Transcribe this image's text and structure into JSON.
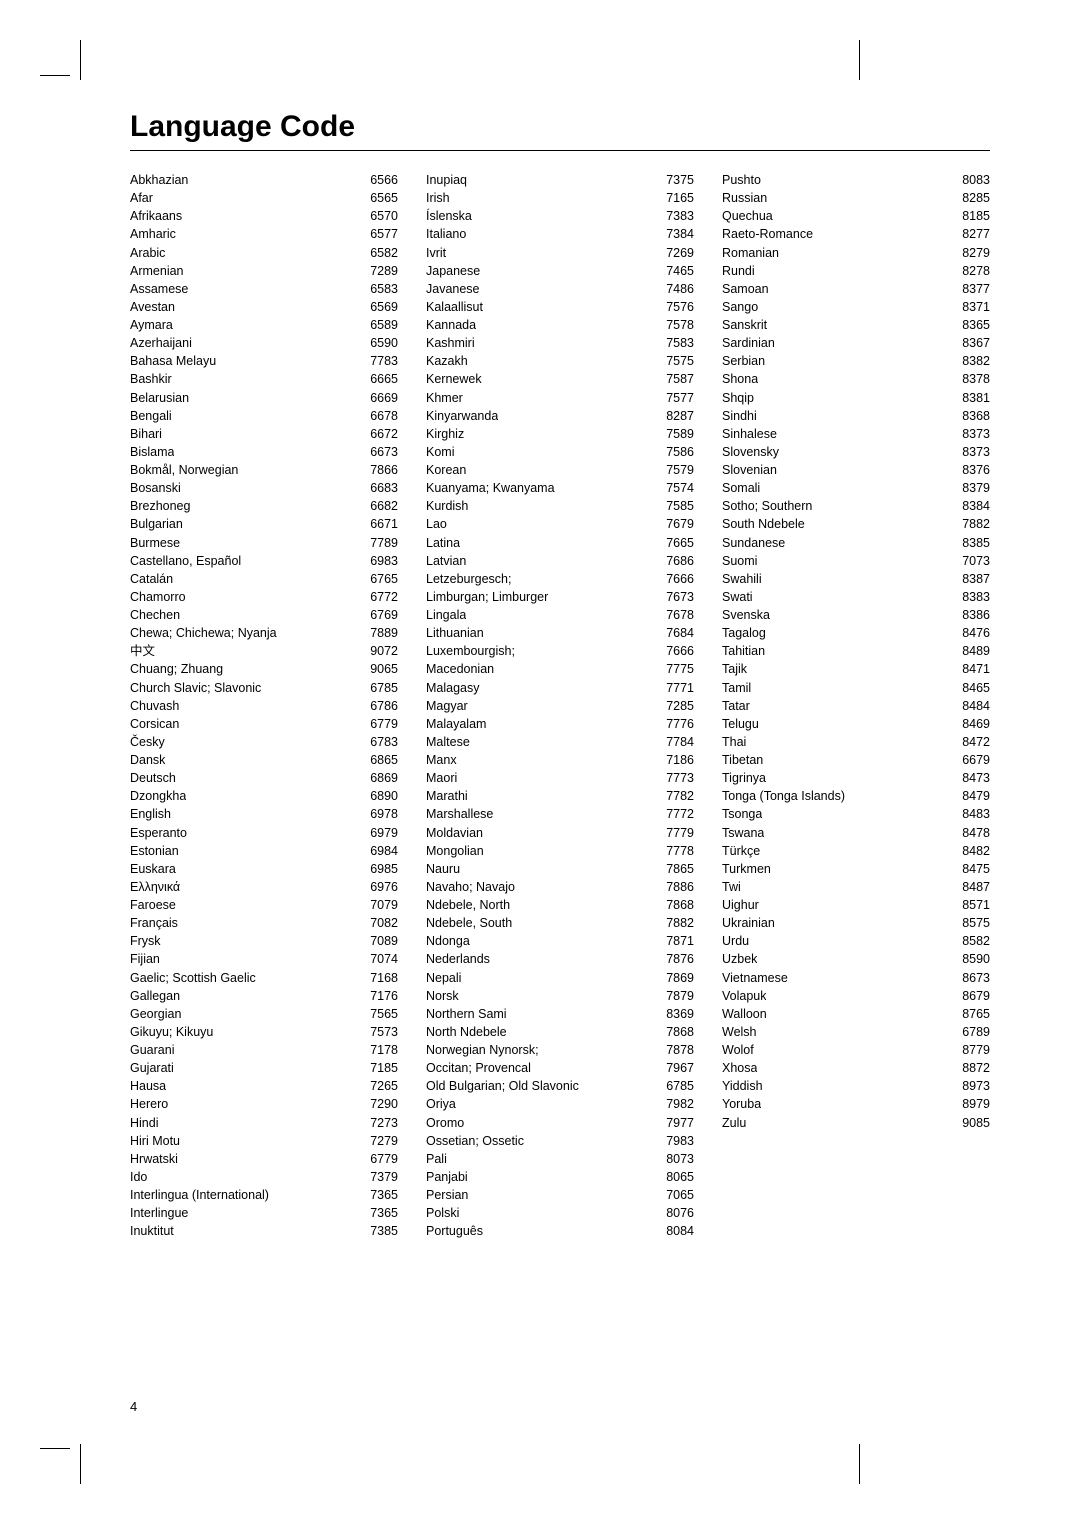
{
  "title": "Language Code",
  "page_number": "4",
  "columns": [
    [
      {
        "name": "Abkhazian",
        "code": "6566"
      },
      {
        "name": "Afar",
        "code": "6565"
      },
      {
        "name": "Afrikaans",
        "code": "6570"
      },
      {
        "name": "Amharic",
        "code": "6577"
      },
      {
        "name": "Arabic",
        "code": "6582"
      },
      {
        "name": "Armenian",
        "code": "7289"
      },
      {
        "name": "Assamese",
        "code": "6583"
      },
      {
        "name": "Avestan",
        "code": "6569"
      },
      {
        "name": "Aymara",
        "code": "6589"
      },
      {
        "name": "Azerhaijani",
        "code": "6590"
      },
      {
        "name": "Bahasa Melayu",
        "code": "7783"
      },
      {
        "name": "Bashkir",
        "code": "6665"
      },
      {
        "name": "Belarusian",
        "code": "6669"
      },
      {
        "name": "Bengali",
        "code": "6678"
      },
      {
        "name": "Bihari",
        "code": "6672"
      },
      {
        "name": "Bislama",
        "code": "6673"
      },
      {
        "name": "Bokmål, Norwegian",
        "code": "7866"
      },
      {
        "name": "Bosanski",
        "code": "6683"
      },
      {
        "name": "Brezhoneg",
        "code": "6682"
      },
      {
        "name": "Bulgarian",
        "code": "6671"
      },
      {
        "name": "Burmese",
        "code": "7789"
      },
      {
        "name": "Castellano, Español",
        "code": "6983"
      },
      {
        "name": "Catalán",
        "code": "6765"
      },
      {
        "name": "Chamorro",
        "code": "6772"
      },
      {
        "name": "Chechen",
        "code": "6769"
      },
      {
        "name": "Chewa; Chichewa; Nyanja",
        "code": "7889"
      },
      {
        "name": "中文",
        "code": "9072"
      },
      {
        "name": "Chuang; Zhuang",
        "code": "9065"
      },
      {
        "name": "Church Slavic; Slavonic",
        "code": "6785"
      },
      {
        "name": "Chuvash",
        "code": "6786"
      },
      {
        "name": "Corsican",
        "code": "6779"
      },
      {
        "name": "Česky",
        "code": "6783"
      },
      {
        "name": "Dansk",
        "code": "6865"
      },
      {
        "name": "Deutsch",
        "code": "6869"
      },
      {
        "name": "Dzongkha",
        "code": "6890"
      },
      {
        "name": "English",
        "code": "6978"
      },
      {
        "name": "Esperanto",
        "code": "6979"
      },
      {
        "name": "Estonian",
        "code": "6984"
      },
      {
        "name": "Euskara",
        "code": "6985"
      },
      {
        "name": "Ελληνικά",
        "code": "6976"
      },
      {
        "name": "Faroese",
        "code": "7079"
      },
      {
        "name": "Français",
        "code": "7082"
      },
      {
        "name": "Frysk",
        "code": "7089"
      },
      {
        "name": "Fijian",
        "code": "7074"
      },
      {
        "name": "Gaelic; Scottish Gaelic",
        "code": "7168"
      },
      {
        "name": "Gallegan",
        "code": "7176"
      },
      {
        "name": "Georgian",
        "code": "7565"
      },
      {
        "name": "Gikuyu; Kikuyu",
        "code": "7573"
      },
      {
        "name": "Guarani",
        "code": "7178"
      },
      {
        "name": "Gujarati",
        "code": "7185"
      },
      {
        "name": "Hausa",
        "code": "7265"
      },
      {
        "name": "Herero",
        "code": "7290"
      },
      {
        "name": "Hindi",
        "code": "7273"
      },
      {
        "name": "Hiri Motu",
        "code": "7279"
      },
      {
        "name": "Hrwatski",
        "code": "6779"
      },
      {
        "name": "Ido",
        "code": "7379"
      },
      {
        "name": "Interlingua (International)",
        "code": "7365"
      },
      {
        "name": "Interlingue",
        "code": "7365"
      },
      {
        "name": "Inuktitut",
        "code": "7385"
      }
    ],
    [
      {
        "name": "Inupiaq",
        "code": "7375"
      },
      {
        "name": "Irish",
        "code": "7165"
      },
      {
        "name": "Íslenska",
        "code": "7383"
      },
      {
        "name": "Italiano",
        "code": "7384"
      },
      {
        "name": "Ivrit",
        "code": "7269"
      },
      {
        "name": "Japanese",
        "code": "7465"
      },
      {
        "name": "Javanese",
        "code": "7486"
      },
      {
        "name": "Kalaallisut",
        "code": "7576"
      },
      {
        "name": "Kannada",
        "code": "7578"
      },
      {
        "name": "Kashmiri",
        "code": "7583"
      },
      {
        "name": "Kazakh",
        "code": "7575"
      },
      {
        "name": "Kernewek",
        "code": "7587"
      },
      {
        "name": "Khmer",
        "code": "7577"
      },
      {
        "name": "Kinyarwanda",
        "code": "8287"
      },
      {
        "name": "Kirghiz",
        "code": "7589"
      },
      {
        "name": "Komi",
        "code": "7586"
      },
      {
        "name": "Korean",
        "code": "7579"
      },
      {
        "name": "Kuanyama; Kwanyama",
        "code": "7574"
      },
      {
        "name": "Kurdish",
        "code": "7585"
      },
      {
        "name": "Lao",
        "code": "7679"
      },
      {
        "name": "Latina",
        "code": "7665"
      },
      {
        "name": "Latvian",
        "code": "7686"
      },
      {
        "name": "Letzeburgesch;",
        "code": "7666"
      },
      {
        "name": "Limburgan; Limburger",
        "code": "7673"
      },
      {
        "name": "Lingala",
        "code": "7678"
      },
      {
        "name": "Lithuanian",
        "code": "7684"
      },
      {
        "name": "Luxembourgish;",
        "code": "7666"
      },
      {
        "name": "Macedonian",
        "code": "7775"
      },
      {
        "name": "Malagasy",
        "code": "7771"
      },
      {
        "name": "Magyar",
        "code": "7285"
      },
      {
        "name": "Malayalam",
        "code": "7776"
      },
      {
        "name": "Maltese",
        "code": "7784"
      },
      {
        "name": "Manx",
        "code": "7186"
      },
      {
        "name": "Maori",
        "code": "7773"
      },
      {
        "name": "Marathi",
        "code": "7782"
      },
      {
        "name": "Marshallese",
        "code": "7772"
      },
      {
        "name": "Moldavian",
        "code": "7779"
      },
      {
        "name": "Mongolian",
        "code": "7778"
      },
      {
        "name": "Nauru",
        "code": "7865"
      },
      {
        "name": "Navaho; Navajo",
        "code": "7886"
      },
      {
        "name": "Ndebele, North",
        "code": "7868"
      },
      {
        "name": "Ndebele, South",
        "code": "7882"
      },
      {
        "name": "Ndonga",
        "code": "7871"
      },
      {
        "name": "Nederlands",
        "code": "7876"
      },
      {
        "name": "Nepali",
        "code": "7869"
      },
      {
        "name": "Norsk",
        "code": "7879"
      },
      {
        "name": "Northern Sami",
        "code": "8369"
      },
      {
        "name": "North Ndebele",
        "code": "7868"
      },
      {
        "name": "Norwegian Nynorsk;",
        "code": "7878"
      },
      {
        "name": "Occitan; Provencal",
        "code": "7967"
      },
      {
        "name": "Old Bulgarian; Old Slavonic",
        "code": "6785"
      },
      {
        "name": "Oriya",
        "code": "7982"
      },
      {
        "name": "Oromo",
        "code": "7977"
      },
      {
        "name": "Ossetian; Ossetic",
        "code": "7983"
      },
      {
        "name": "Pali",
        "code": "8073"
      },
      {
        "name": "Panjabi",
        "code": "8065"
      },
      {
        "name": "Persian",
        "code": "7065"
      },
      {
        "name": "Polski",
        "code": "8076"
      },
      {
        "name": "Português",
        "code": "8084"
      }
    ],
    [
      {
        "name": "Pushto",
        "code": "8083"
      },
      {
        "name": "Russian",
        "code": "8285"
      },
      {
        "name": "Quechua",
        "code": "8185"
      },
      {
        "name": "Raeto-Romance",
        "code": "8277"
      },
      {
        "name": "Romanian",
        "code": "8279"
      },
      {
        "name": "Rundi",
        "code": "8278"
      },
      {
        "name": "Samoan",
        "code": "8377"
      },
      {
        "name": "Sango",
        "code": "8371"
      },
      {
        "name": "Sanskrit",
        "code": "8365"
      },
      {
        "name": "Sardinian",
        "code": "8367"
      },
      {
        "name": "Serbian",
        "code": "8382"
      },
      {
        "name": "Shona",
        "code": "8378"
      },
      {
        "name": "Shqip",
        "code": "8381"
      },
      {
        "name": "Sindhi",
        "code": "8368"
      },
      {
        "name": "Sinhalese",
        "code": "8373"
      },
      {
        "name": "Slovensky",
        "code": "8373"
      },
      {
        "name": "Slovenian",
        "code": "8376"
      },
      {
        "name": "Somali",
        "code": "8379"
      },
      {
        "name": "Sotho; Southern",
        "code": "8384"
      },
      {
        "name": "South Ndebele",
        "code": "7882"
      },
      {
        "name": "Sundanese",
        "code": "8385"
      },
      {
        "name": "Suomi",
        "code": "7073"
      },
      {
        "name": "Swahili",
        "code": "8387"
      },
      {
        "name": "Swati",
        "code": "8383"
      },
      {
        "name": "Svenska",
        "code": "8386"
      },
      {
        "name": "Tagalog",
        "code": "8476"
      },
      {
        "name": "Tahitian",
        "code": "8489"
      },
      {
        "name": "Tajik",
        "code": "8471"
      },
      {
        "name": "Tamil",
        "code": "8465"
      },
      {
        "name": "Tatar",
        "code": "8484"
      },
      {
        "name": "Telugu",
        "code": "8469"
      },
      {
        "name": "Thai",
        "code": "8472"
      },
      {
        "name": "Tibetan",
        "code": "6679"
      },
      {
        "name": "Tigrinya",
        "code": "8473"
      },
      {
        "name": "Tonga (Tonga Islands)",
        "code": "8479"
      },
      {
        "name": "Tsonga",
        "code": "8483"
      },
      {
        "name": "Tswana",
        "code": "8478"
      },
      {
        "name": "Türkçe",
        "code": "8482"
      },
      {
        "name": "Turkmen",
        "code": "8475"
      },
      {
        "name": "Twi",
        "code": "8487"
      },
      {
        "name": "Uighur",
        "code": "8571"
      },
      {
        "name": "Ukrainian",
        "code": "8575"
      },
      {
        "name": "Urdu",
        "code": "8582"
      },
      {
        "name": "Uzbek",
        "code": "8590"
      },
      {
        "name": "Vietnamese",
        "code": "8673"
      },
      {
        "name": "Volapuk",
        "code": "8679"
      },
      {
        "name": "Walloon",
        "code": "8765"
      },
      {
        "name": "Welsh",
        "code": "6789"
      },
      {
        "name": "Wolof",
        "code": "8779"
      },
      {
        "name": "Xhosa",
        "code": "8872"
      },
      {
        "name": "Yiddish",
        "code": "8973"
      },
      {
        "name": "Yoruba",
        "code": "8979"
      },
      {
        "name": "Zulu",
        "code": "9085"
      }
    ]
  ]
}
